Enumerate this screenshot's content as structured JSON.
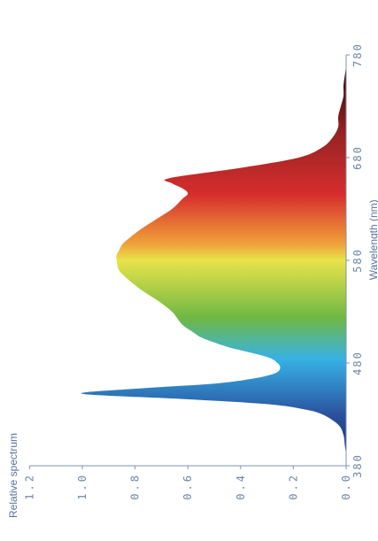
{
  "chart_data": {
    "type": "area",
    "title": "",
    "xlabel": "Wavelength (nm)",
    "ylabel": "Relative spectrum",
    "xlim": [
      380,
      780
    ],
    "ylim": [
      0,
      1.2
    ],
    "x_ticks": [
      "380",
      "480",
      "580",
      "680",
      "780"
    ],
    "y_ticks": [
      "0.0",
      "0.2",
      "0.4",
      "0.6",
      "0.8",
      "1.0",
      "1.2"
    ],
    "grid": false,
    "legend": "none",
    "orientation": "rotated-90-ccw",
    "gradient": [
      "#1c2a6a",
      "#2a4f9c",
      "#37b2e6",
      "#6fb844",
      "#e8e34a",
      "#f0a13a",
      "#d72d2d",
      "#9a2424",
      "#2a0202"
    ],
    "series": [
      {
        "x": [
          380,
          390,
          400,
          410,
          420,
          430,
          435,
          440,
          445,
          450,
          455,
          460,
          465,
          470,
          475,
          480,
          485,
          490,
          495,
          500,
          505,
          510,
          515,
          520,
          530,
          540,
          550,
          560,
          570,
          580,
          585,
          590,
          595,
          600,
          610,
          620,
          630,
          640,
          645,
          650,
          655,
          660,
          670,
          680,
          690,
          700,
          710,
          720,
          730,
          740,
          750,
          760,
          770,
          780
        ],
        "values": [
          0.0,
          0.0,
          0.005,
          0.01,
          0.03,
          0.09,
          0.16,
          0.3,
          0.62,
          1.0,
          0.8,
          0.5,
          0.35,
          0.27,
          0.25,
          0.26,
          0.29,
          0.36,
          0.44,
          0.5,
          0.55,
          0.58,
          0.61,
          0.63,
          0.66,
          0.71,
          0.77,
          0.82,
          0.86,
          0.87,
          0.87,
          0.86,
          0.85,
          0.83,
          0.78,
          0.72,
          0.66,
          0.62,
          0.6,
          0.62,
          0.66,
          0.67,
          0.4,
          0.18,
          0.09,
          0.05,
          0.03,
          0.03,
          0.02,
          0.01,
          0.01,
          0.005,
          0.0,
          0.0
        ]
      }
    ]
  }
}
